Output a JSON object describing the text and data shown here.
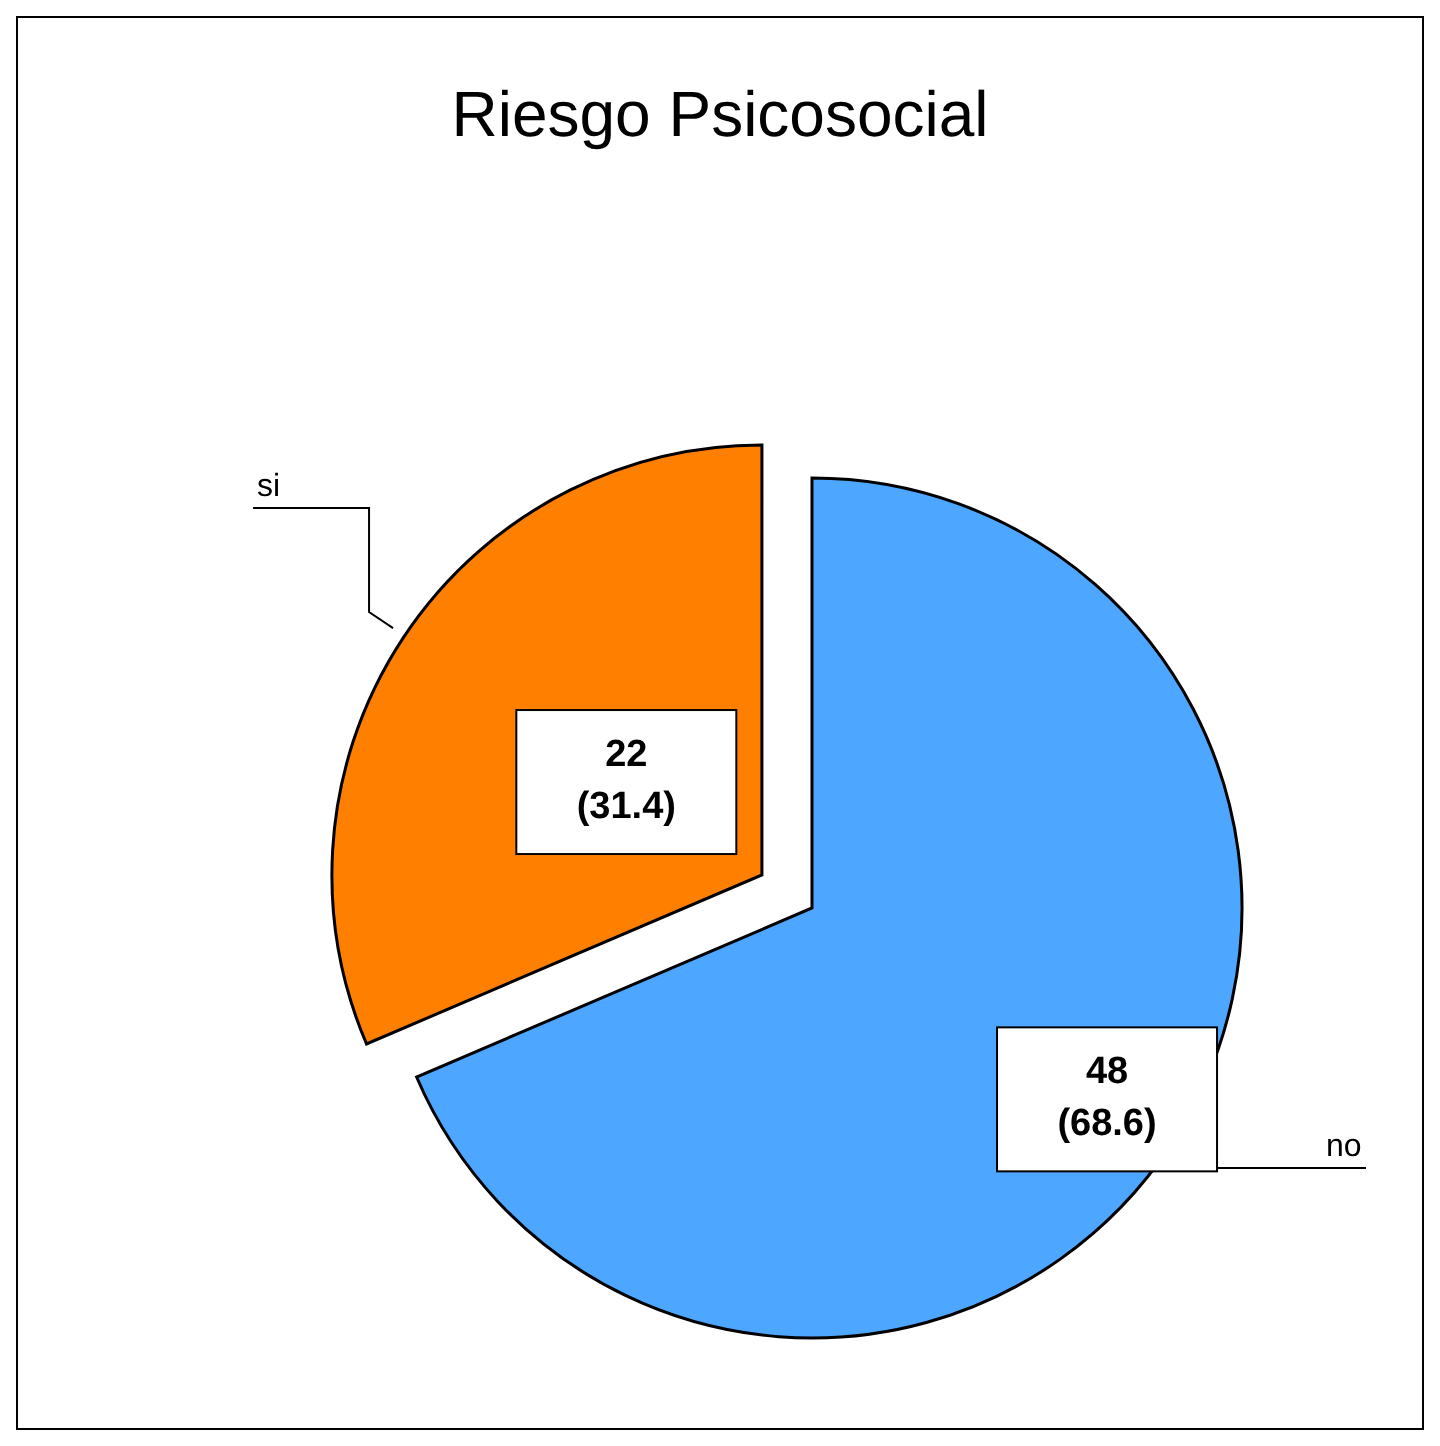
{
  "chart_data": {
    "type": "pie",
    "title": "Riesgo Psicosocial",
    "categories": [
      "no",
      "si"
    ],
    "values": [
      48,
      22
    ],
    "colors": [
      "#4da6ff",
      "#ff8000"
    ],
    "value_labels": [
      "48 (68.6)",
      "22 (31.4)"
    ]
  }
}
